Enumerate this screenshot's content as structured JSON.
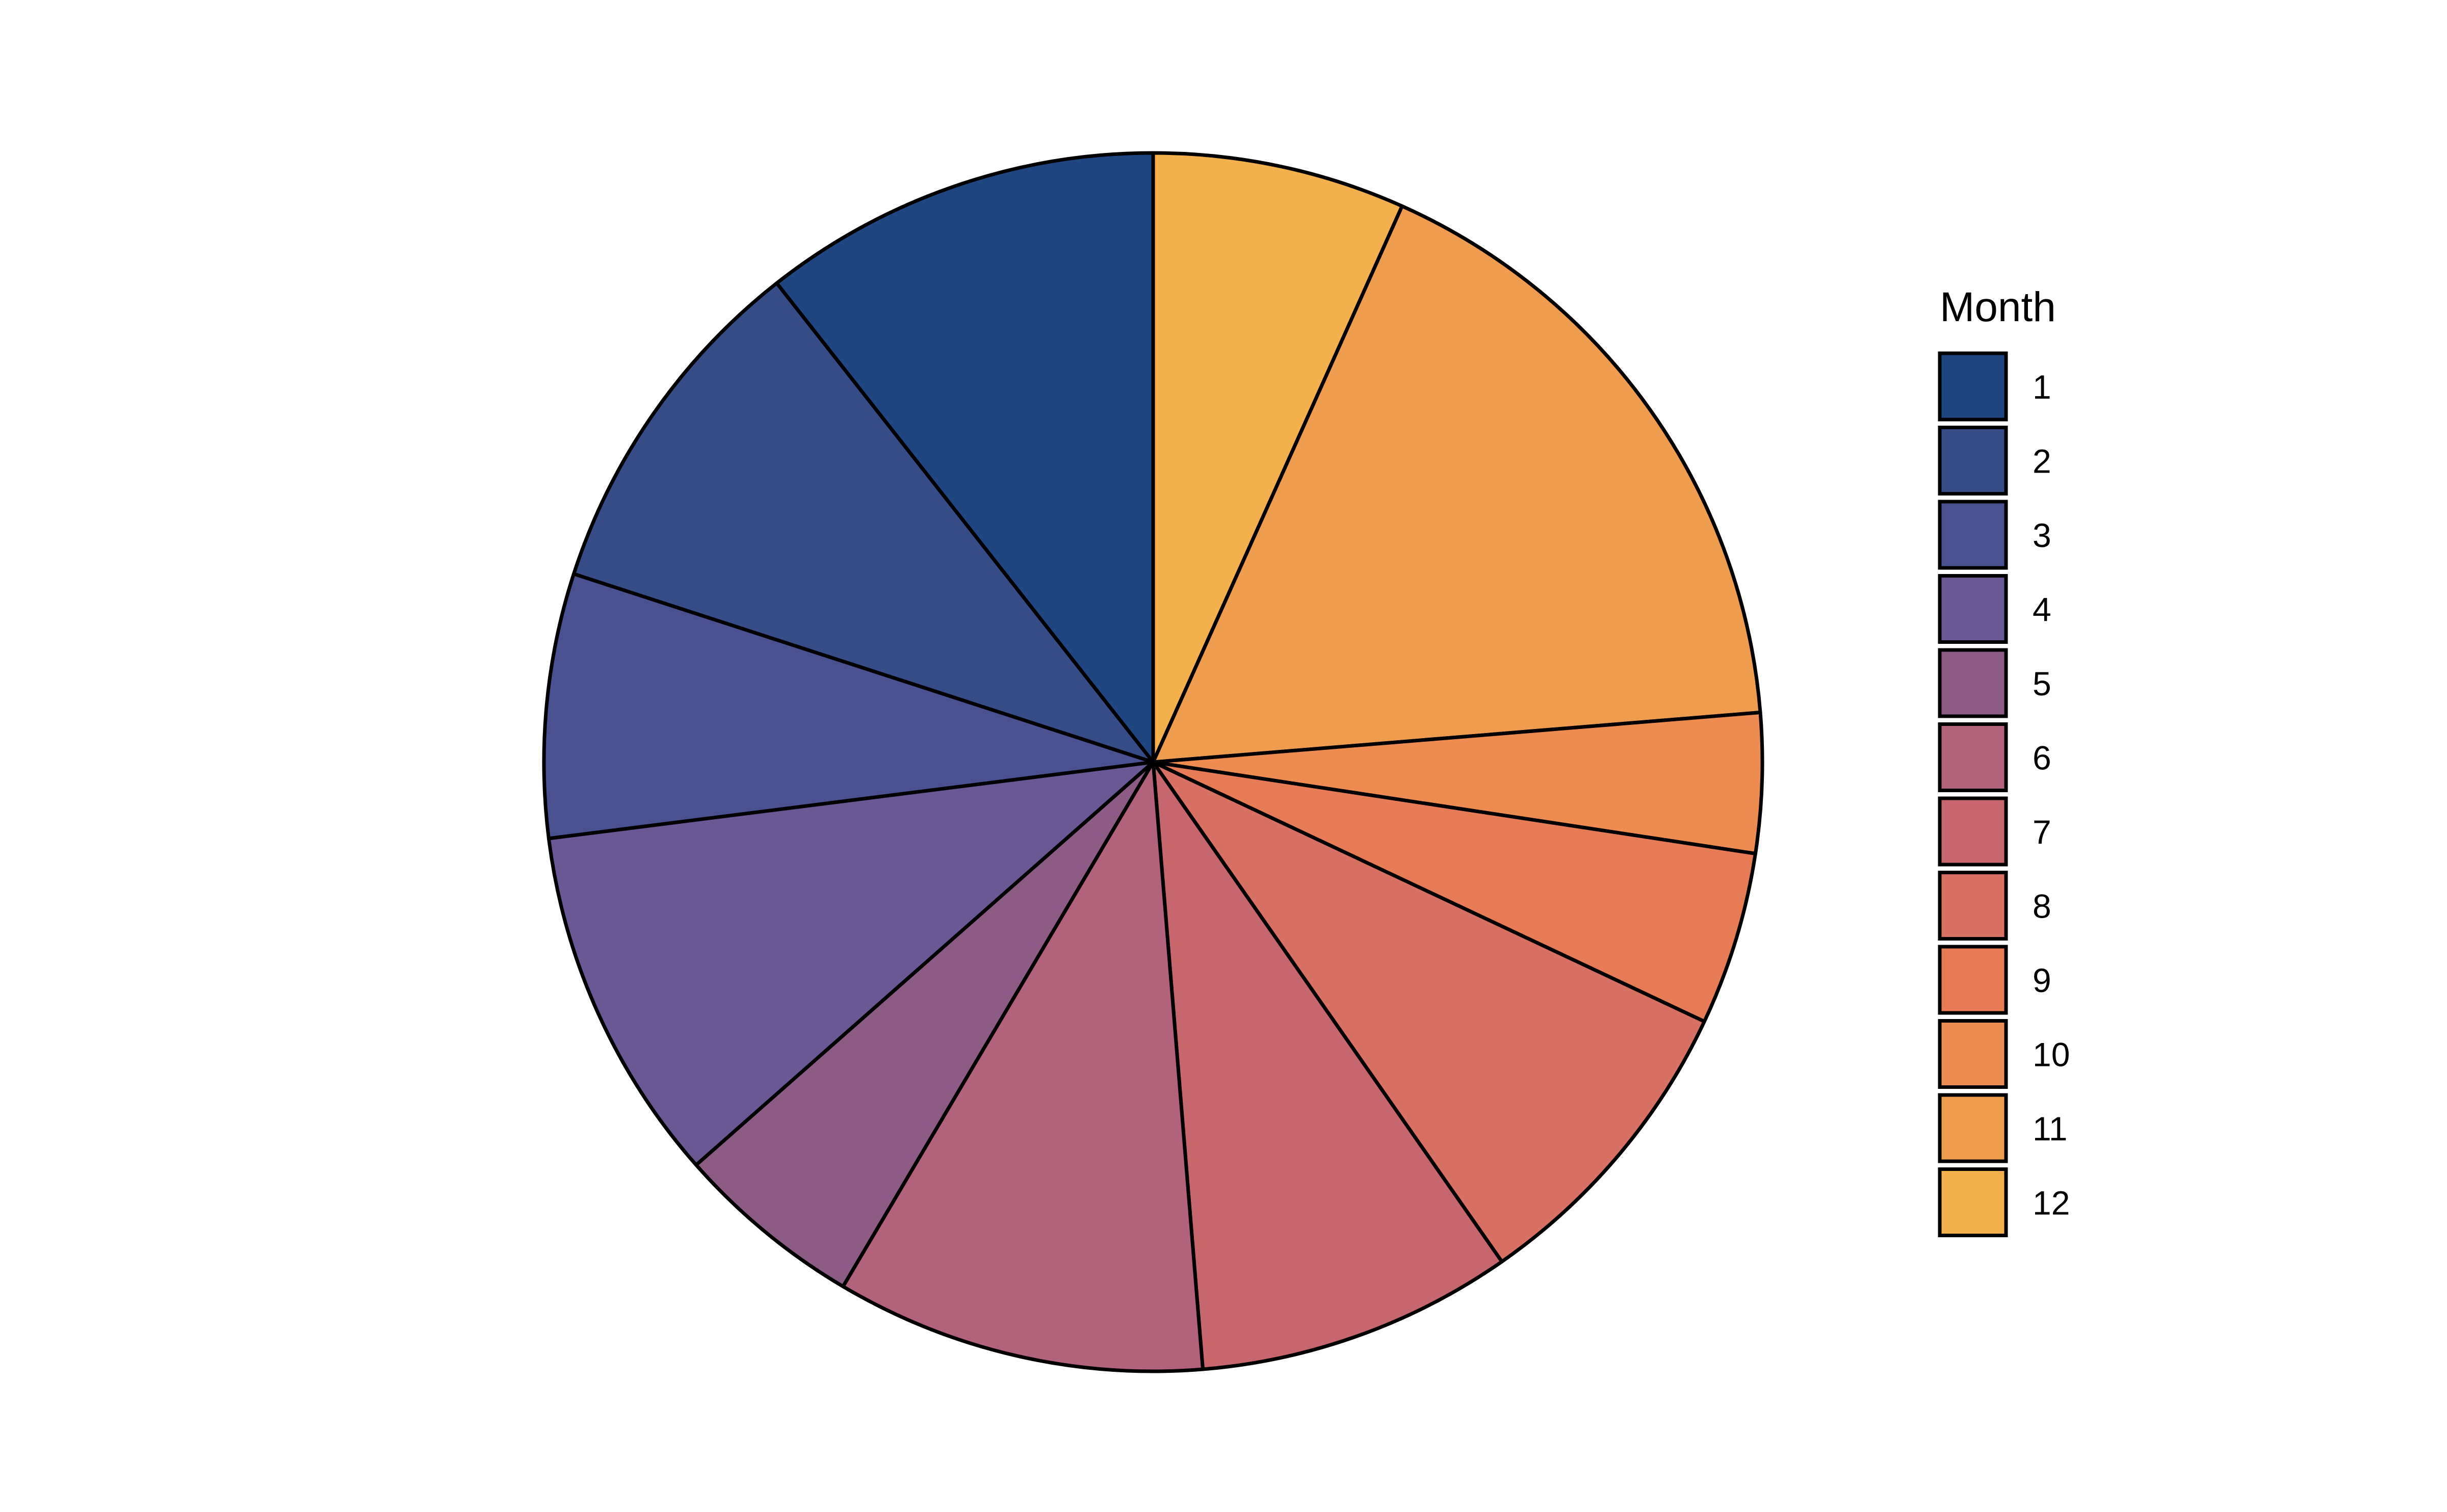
{
  "chart_data": {
    "type": "pie",
    "legend": {
      "title": "Month",
      "placement": "right"
    },
    "start_angle_deg": 0,
    "direction": "clockwise",
    "slices": [
      {
        "label": "1",
        "value": 10.6,
        "color": "#1F4680"
      },
      {
        "label": "2",
        "value": 9.4,
        "color": "#354C87"
      },
      {
        "label": "3",
        "value": 7.0,
        "color": "#4A5190"
      },
      {
        "label": "4",
        "value": 9.5,
        "color": "#6A5895"
      },
      {
        "label": "5",
        "value": 5.0,
        "color": "#8C5C87"
      },
      {
        "label": "6",
        "value": 9.8,
        "color": "#B2627A"
      },
      {
        "label": "7",
        "value": 8.4,
        "color": "#C8666D"
      },
      {
        "label": "8",
        "value": 8.3,
        "color": "#D87164"
      },
      {
        "label": "9",
        "value": 4.6,
        "color": "#E77B56"
      },
      {
        "label": "10",
        "value": 3.7,
        "color": "#EE8B50"
      },
      {
        "label": "11",
        "value": 17.0,
        "color": "#EF9C4E"
      },
      {
        "label": "12",
        "value": 6.7,
        "color": "#F3B04C"
      }
    ]
  }
}
